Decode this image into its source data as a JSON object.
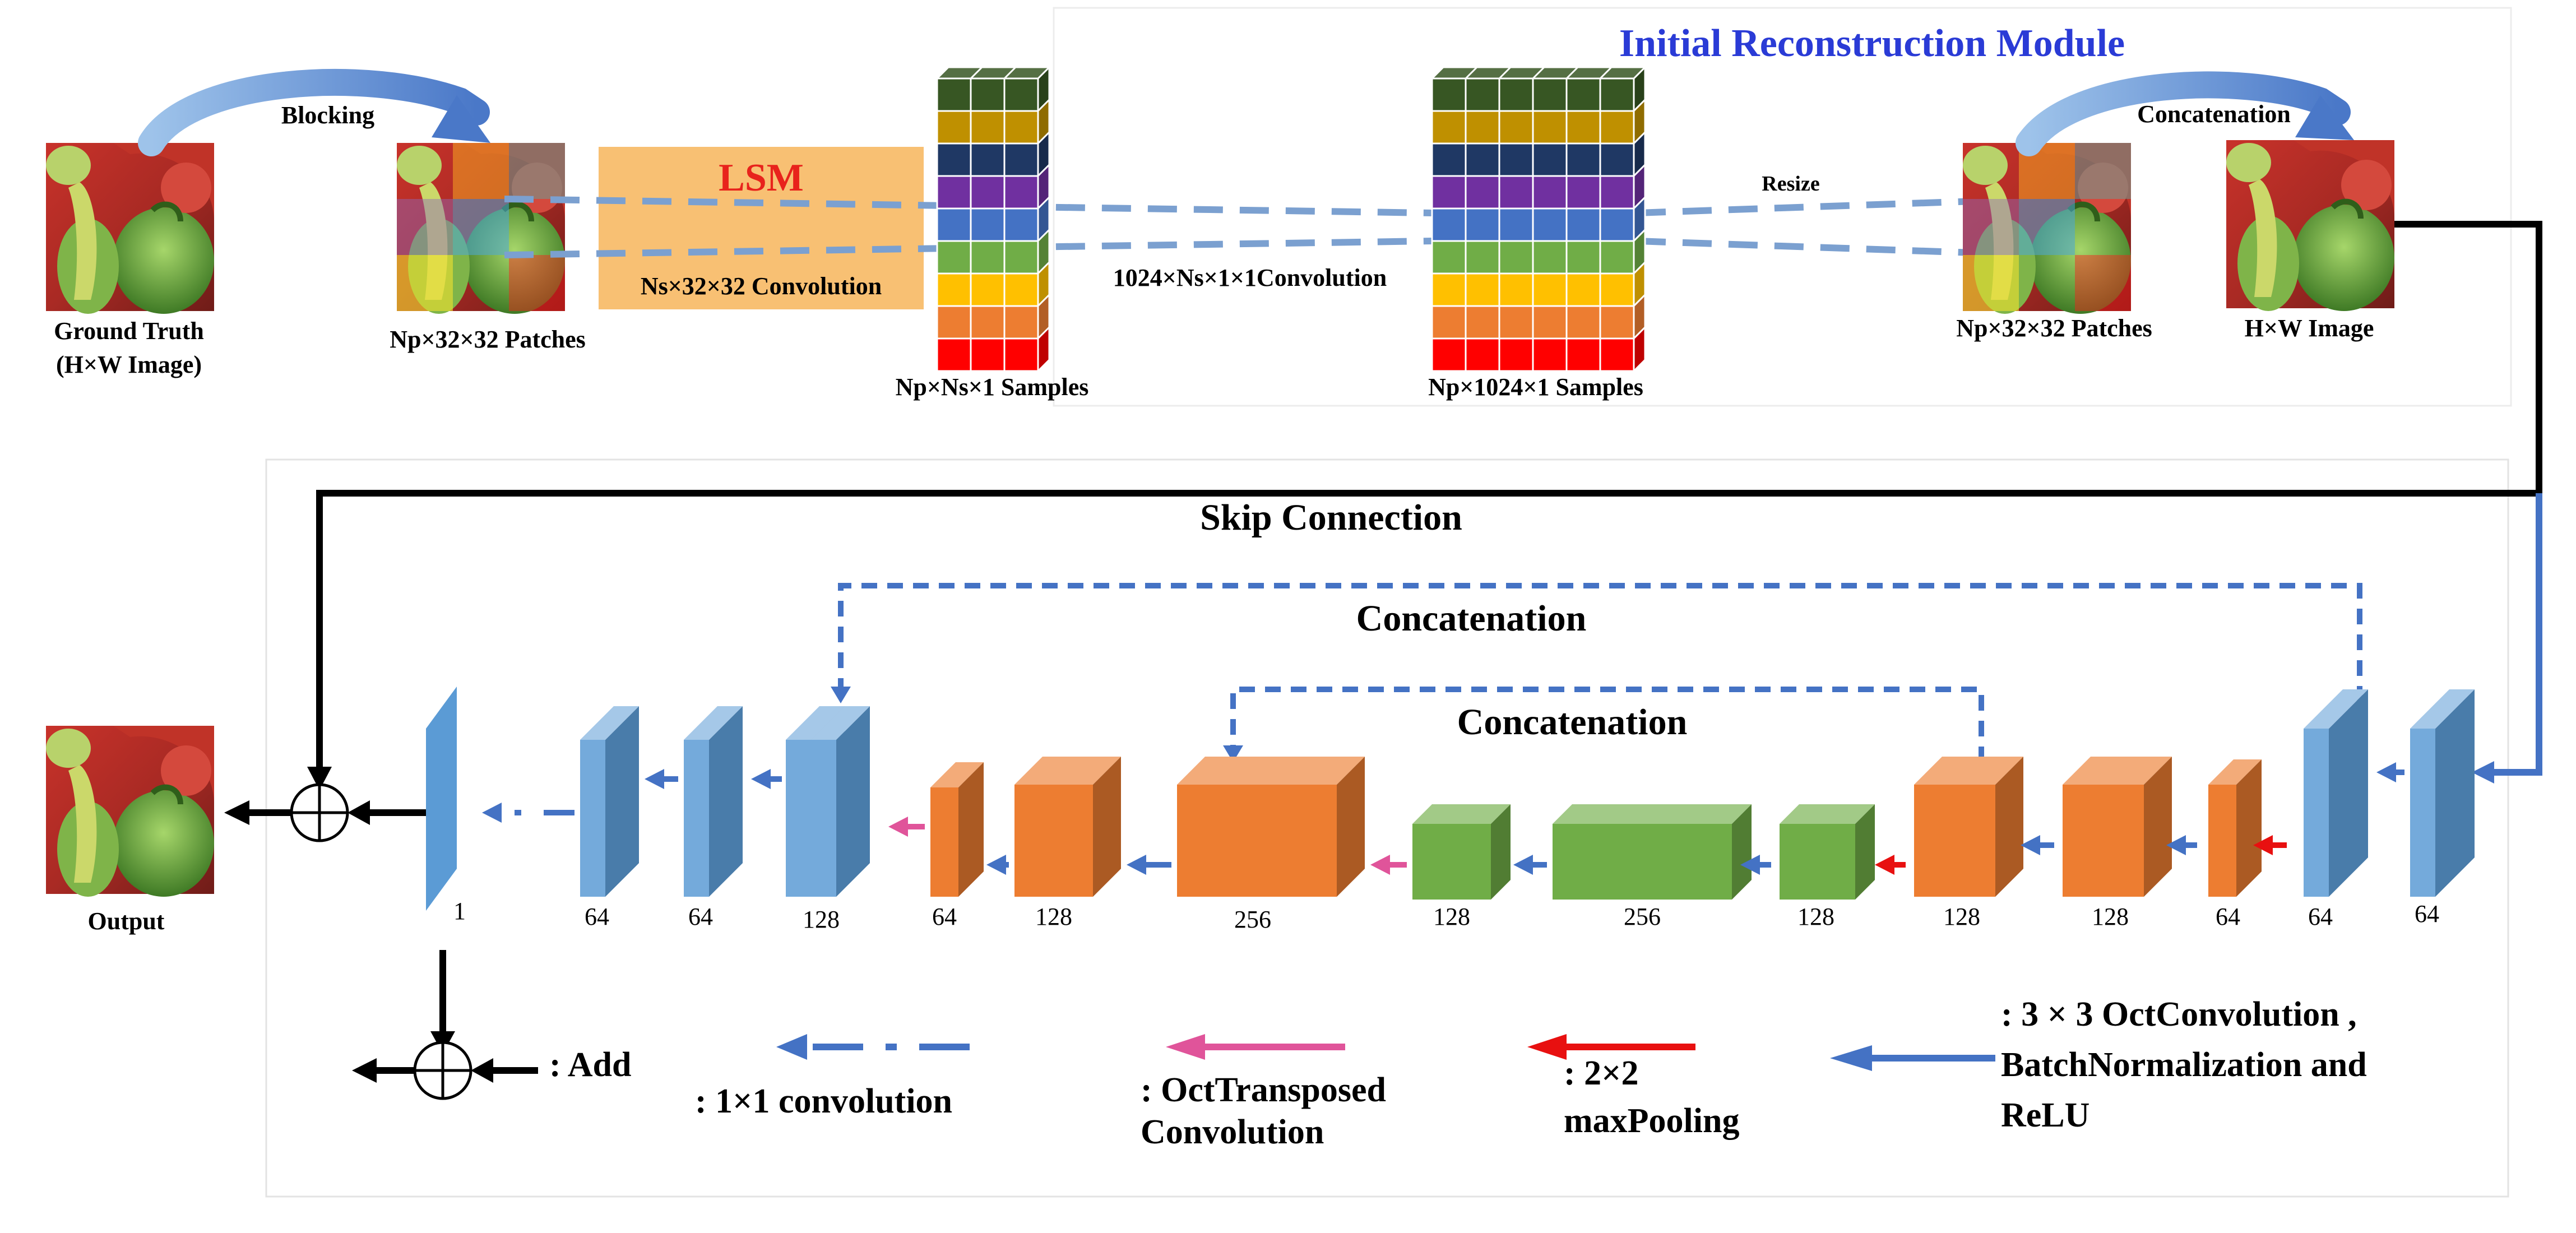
{
  "top": {
    "module_title": "Initial Reconstruction Module",
    "blocking": "Blocking",
    "ground_truth": "Ground Truth",
    "ground_truth_sub": "(H×W Image)",
    "patches_left": "Np×32×32 Patches",
    "lsm": "LSM",
    "lsm_conv": "Ns×32×32 Convolution",
    "samples_small": "Np×Ns×1 Samples",
    "conv_1024": "1024×Ns×1×1Convolution",
    "samples_big": "Np×1024×1 Samples",
    "resize": "Resize",
    "concat_top": "Concatenation",
    "patches_right": "Np×32×32 Patches",
    "hw_image": "H×W Image"
  },
  "network": {
    "skip": "Skip Connection",
    "concat_outer": "Concatenation",
    "concat_inner": "Concatenation",
    "output": "Output",
    "channels": [
      "1",
      "64",
      "64",
      "128",
      "64",
      "128",
      "256",
      "128",
      "256",
      "128",
      "128",
      "128",
      "64",
      "64",
      "64"
    ]
  },
  "legend": {
    "add": ": Add",
    "conv1x1": ": 1×1 convolution",
    "transposed_1": ": OctTransposed",
    "transposed_2": "Convolution",
    "pool_1": ": 2×2",
    "pool_2": "maxPooling",
    "oct_1": ": 3 ×  3 OctConvolution ,",
    "oct_2": "BatchNormalization and",
    "oct_3": "ReLU"
  },
  "colors": {
    "title_blue": "#2a3bd6",
    "lsm_fill": "#f8c073",
    "lsm_red": "#e8231c",
    "blue_block": "#5b9bd5",
    "orange_block": "#ed7d31",
    "green_block": "#70ad47",
    "arrow_blue": "#4472c4",
    "arrow_red": "#e81010",
    "arrow_pink": "#e0549a"
  }
}
